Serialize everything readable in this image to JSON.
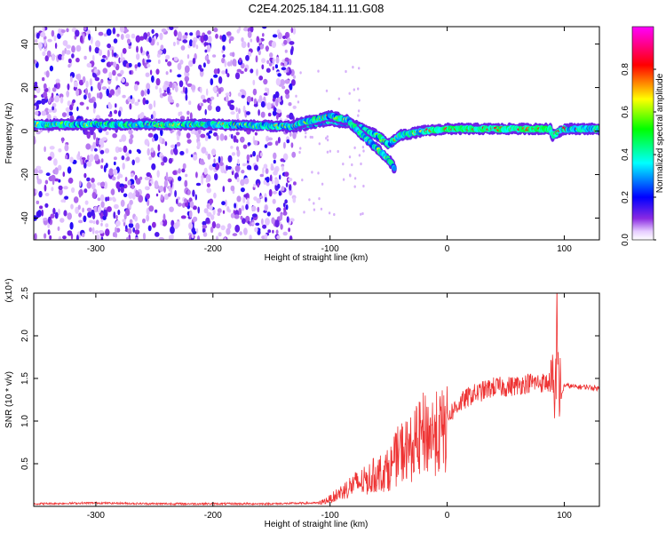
{
  "title": "C2E4.2025.184.11.11.G08",
  "chart_data": [
    {
      "type": "heatmap",
      "xlabel": "Height of straight line (km)",
      "ylabel": "Frequency (Hz)",
      "xlim": [
        -353,
        130
      ],
      "ylim": [
        -50,
        48
      ],
      "x_ticks": [
        -300,
        -200,
        -100,
        0,
        100
      ],
      "y_ticks": [
        -40,
        -20,
        0,
        20,
        40
      ],
      "colorbar": {
        "label": "Normalized spectral amplitude",
        "range": [
          0.0,
          1.0
        ],
        "ticks": [
          "0.0",
          "0.2",
          "0.4",
          "0.6",
          "0.8"
        ],
        "colormap": "rainbow: magenta-blue-cyan-green-yellow-red-magenta"
      },
      "ridges": [
        {
          "x": [
            -353,
            -300,
            -200,
            -130,
            -120,
            -100,
            -80,
            -60,
            -50,
            -40,
            -20,
            0,
            50,
            88,
            90,
            100,
            130
          ],
          "y": [
            3,
            3,
            3,
            2,
            3,
            5,
            3,
            -2,
            -6,
            -2,
            0,
            1,
            1,
            1,
            -2,
            1,
            1
          ]
        },
        {
          "x": [
            -130,
            -115,
            -100,
            -85,
            -70,
            -60,
            -50,
            -45
          ],
          "y": [
            3,
            5,
            7,
            5,
            -3,
            -8,
            -13,
            -17
          ]
        }
      ],
      "noise_region_x": [
        -353,
        -130
      ]
    },
    {
      "type": "line",
      "xlabel": "Height of straight line (km)",
      "ylabel": "SNR (10 * v/v)",
      "y_scale_label": "(x10⁴)",
      "xlim": [
        -353,
        130
      ],
      "ylim": [
        0,
        2.5
      ],
      "x_ticks": [
        -300,
        -200,
        -100,
        0,
        100
      ],
      "y_ticks": [
        "0.5",
        "1.0",
        "1.5",
        "2.0",
        "2.5"
      ],
      "color": "#ee3333",
      "x": [
        -353,
        -300,
        -250,
        -200,
        -150,
        -110,
        -100,
        -90,
        -80,
        -70,
        -60,
        -50,
        -40,
        -30,
        -20,
        -10,
        0,
        10,
        20,
        30,
        40,
        50,
        60,
        70,
        80,
        88,
        92,
        94,
        96,
        100,
        110,
        120,
        130
      ],
      "y": [
        0.03,
        0.04,
        0.03,
        0.03,
        0.03,
        0.04,
        0.1,
        0.2,
        0.3,
        0.35,
        0.45,
        0.5,
        0.75,
        0.8,
        1.0,
        1.0,
        1.05,
        1.2,
        1.3,
        1.35,
        1.4,
        1.4,
        1.42,
        1.45,
        1.45,
        1.45,
        1.1,
        2.3,
        1.2,
        1.42,
        1.4,
        1.4,
        1.38
      ]
    }
  ]
}
